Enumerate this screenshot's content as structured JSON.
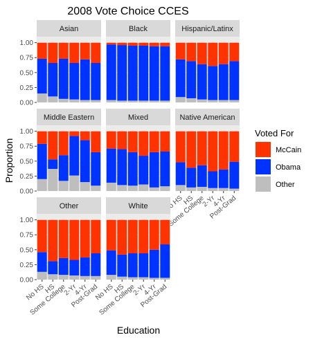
{
  "chart_data": {
    "type": "bar",
    "stacked": true,
    "faceted": true,
    "title": "2008 Vote Choice CCES",
    "xlabel": "Education",
    "ylabel": "Proportion",
    "ylim": [
      0,
      1.1
    ],
    "yticks": [
      0,
      0.25,
      0.5,
      0.75,
      1.0
    ],
    "ytick_labels": [
      "0.00",
      "0.25",
      "0.50",
      "0.75",
      "1.00"
    ],
    "categories": [
      "No HS",
      "HS",
      "Some College",
      "2-Yr",
      "4-Yr",
      "Post-Grad"
    ],
    "legend": {
      "title": "Voted For",
      "position": "right",
      "entries": [
        {
          "name": "McCain",
          "color": "#ff3300"
        },
        {
          "name": "Obama",
          "color": "#0033ff"
        },
        {
          "name": "Other",
          "color": "#bebebe"
        }
      ]
    },
    "stack_order_bottom_to_top": [
      "Other",
      "Obama",
      "McCain"
    ],
    "panel_background": "#ebebeb",
    "strip_background": "#d9d9d9",
    "grid": true,
    "facets": [
      {
        "name": "Asian",
        "series": [
          {
            "name": "Other",
            "values": [
              0.15,
              0.1,
              0.06,
              0.05,
              0.04,
              0.04
            ]
          },
          {
            "name": "Obama",
            "values": [
              0.58,
              0.56,
              0.67,
              0.61,
              0.68,
              0.62
            ]
          },
          {
            "name": "McCain",
            "values": [
              0.27,
              0.34,
              0.27,
              0.34,
              0.28,
              0.34
            ]
          }
        ]
      },
      {
        "name": "Black",
        "series": [
          {
            "name": "Other",
            "values": [
              0.04,
              0.03,
              0.03,
              0.03,
              0.03,
              0.03
            ]
          },
          {
            "name": "Obama",
            "values": [
              0.93,
              0.93,
              0.92,
              0.92,
              0.91,
              0.91
            ]
          },
          {
            "name": "McCain",
            "values": [
              0.03,
              0.04,
              0.05,
              0.05,
              0.06,
              0.06
            ]
          }
        ]
      },
      {
        "name": "Hispanic/Latinx",
        "series": [
          {
            "name": "Other",
            "values": [
              0.09,
              0.07,
              0.05,
              0.04,
              0.04,
              0.04
            ]
          },
          {
            "name": "Obama",
            "values": [
              0.63,
              0.62,
              0.59,
              0.57,
              0.6,
              0.65
            ]
          },
          {
            "name": "McCain",
            "values": [
              0.28,
              0.31,
              0.36,
              0.39,
              0.36,
              0.31
            ]
          }
        ]
      },
      {
        "name": "Middle Eastern",
        "series": [
          {
            "name": "Other",
            "values": [
              0.2,
              0.37,
              0.17,
              0.26,
              0.15,
              0.09
            ]
          },
          {
            "name": "Obama",
            "values": [
              0.59,
              0.16,
              0.43,
              0.66,
              0.7,
              0.56
            ]
          },
          {
            "name": "McCain",
            "values": [
              0.21,
              0.47,
              0.4,
              0.08,
              0.15,
              0.35
            ]
          }
        ]
      },
      {
        "name": "Mixed",
        "series": [
          {
            "name": "Other",
            "values": [
              0.14,
              0.1,
              0.09,
              0.11,
              0.06,
              0.08
            ]
          },
          {
            "name": "Obama",
            "values": [
              0.57,
              0.6,
              0.56,
              0.48,
              0.59,
              0.58
            ]
          },
          {
            "name": "McCain",
            "values": [
              0.29,
              0.3,
              0.35,
              0.41,
              0.35,
              0.34
            ]
          }
        ]
      },
      {
        "name": "Native American",
        "series": [
          {
            "name": "Other",
            "values": [
              0.1,
              0.06,
              0.07,
              0.05,
              0.05,
              0.04
            ]
          },
          {
            "name": "Obama",
            "values": [
              0.38,
              0.33,
              0.36,
              0.28,
              0.31,
              0.45
            ]
          },
          {
            "name": "McCain",
            "values": [
              0.52,
              0.61,
              0.57,
              0.67,
              0.64,
              0.51
            ]
          }
        ]
      },
      {
        "name": "Other",
        "series": [
          {
            "name": "Other",
            "values": [
              0.13,
              0.09,
              0.08,
              0.07,
              0.06,
              0.06
            ]
          },
          {
            "name": "Obama",
            "values": [
              0.33,
              0.22,
              0.28,
              0.26,
              0.31,
              0.38
            ]
          },
          {
            "name": "McCain",
            "values": [
              0.54,
              0.69,
              0.64,
              0.67,
              0.63,
              0.56
            ]
          }
        ]
      },
      {
        "name": "White",
        "series": [
          {
            "name": "Other",
            "values": [
              0.08,
              0.05,
              0.04,
              0.04,
              0.03,
              0.03
            ]
          },
          {
            "name": "Obama",
            "values": [
              0.41,
              0.37,
              0.4,
              0.4,
              0.47,
              0.56
            ]
          },
          {
            "name": "McCain",
            "values": [
              0.51,
              0.58,
              0.56,
              0.56,
              0.5,
              0.41
            ]
          }
        ]
      }
    ]
  }
}
